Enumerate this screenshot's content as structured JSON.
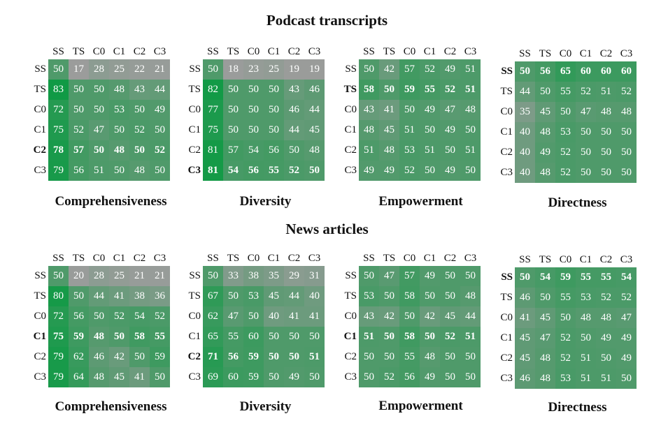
{
  "sections": [
    {
      "title": "Podcast transcripts"
    },
    {
      "title": "News articles"
    }
  ],
  "labels": [
    "SS",
    "TS",
    "C0",
    "C1",
    "C2",
    "C3"
  ],
  "colors": {
    "neutral": "#9c9c9c",
    "mid": "#4f9a6a",
    "high": "#0e9a44"
  },
  "chart_data": [
    {
      "type": "heatmap",
      "section": "Podcast transcripts",
      "title": "Comprehensiveness",
      "rows": [
        "SS",
        "TS",
        "C0",
        "C1",
        "C2",
        "C3"
      ],
      "cols": [
        "SS",
        "TS",
        "C0",
        "C1",
        "C2",
        "C3"
      ],
      "bold_rows": [
        "C2"
      ],
      "values": [
        [
          50,
          17,
          28,
          25,
          22,
          21
        ],
        [
          83,
          50,
          50,
          48,
          43,
          44
        ],
        [
          72,
          50,
          50,
          53,
          50,
          49
        ],
        [
          75,
          52,
          47,
          50,
          52,
          50
        ],
        [
          78,
          57,
          50,
          48,
          50,
          52
        ],
        [
          79,
          56,
          51,
          50,
          48,
          50
        ]
      ]
    },
    {
      "type": "heatmap",
      "section": "Podcast transcripts",
      "title": "Diversity",
      "rows": [
        "SS",
        "TS",
        "C0",
        "C1",
        "C2",
        "C3"
      ],
      "cols": [
        "SS",
        "TS",
        "C0",
        "C1",
        "C2",
        "C3"
      ],
      "bold_rows": [
        "C3"
      ],
      "values": [
        [
          50,
          18,
          23,
          25,
          19,
          19
        ],
        [
          82,
          50,
          50,
          50,
          43,
          46
        ],
        [
          77,
          50,
          50,
          50,
          46,
          44
        ],
        [
          75,
          50,
          50,
          50,
          44,
          45
        ],
        [
          81,
          57,
          54,
          56,
          50,
          48
        ],
        [
          81,
          54,
          56,
          55,
          52,
          50
        ]
      ]
    },
    {
      "type": "heatmap",
      "section": "Podcast transcripts",
      "title": "Empowerment",
      "rows": [
        "SS",
        "TS",
        "C0",
        "C1",
        "C2",
        "C3"
      ],
      "cols": [
        "SS",
        "TS",
        "C0",
        "C1",
        "C2",
        "C3"
      ],
      "bold_rows": [
        "TS"
      ],
      "values": [
        [
          50,
          42,
          57,
          52,
          49,
          51
        ],
        [
          58,
          50,
          59,
          55,
          52,
          51
        ],
        [
          43,
          41,
          50,
          49,
          47,
          48
        ],
        [
          48,
          45,
          51,
          50,
          49,
          50
        ],
        [
          51,
          48,
          53,
          51,
          50,
          51
        ],
        [
          49,
          49,
          52,
          50,
          49,
          50
        ]
      ]
    },
    {
      "type": "heatmap",
      "section": "Podcast transcripts",
      "title": "Directness",
      "rows": [
        "SS",
        "TS",
        "C0",
        "C1",
        "C2",
        "C3"
      ],
      "cols": [
        "SS",
        "TS",
        "C0",
        "C1",
        "C2",
        "C3"
      ],
      "bold_rows": [
        "SS"
      ],
      "values": [
        [
          50,
          56,
          65,
          60,
          60,
          60
        ],
        [
          44,
          50,
          55,
          52,
          51,
          52
        ],
        [
          35,
          45,
          50,
          47,
          48,
          48
        ],
        [
          40,
          48,
          53,
          50,
          50,
          50
        ],
        [
          40,
          49,
          52,
          50,
          50,
          50
        ],
        [
          40,
          48,
          52,
          50,
          50,
          50
        ]
      ]
    },
    {
      "type": "heatmap",
      "section": "News articles",
      "title": "Comprehensiveness",
      "rows": [
        "SS",
        "TS",
        "C0",
        "C1",
        "C2",
        "C3"
      ],
      "cols": [
        "SS",
        "TS",
        "C0",
        "C1",
        "C2",
        "C3"
      ],
      "bold_rows": [
        "C1"
      ],
      "values": [
        [
          50,
          20,
          28,
          25,
          21,
          21
        ],
        [
          80,
          50,
          44,
          41,
          38,
          36
        ],
        [
          72,
          56,
          50,
          52,
          54,
          52
        ],
        [
          75,
          59,
          48,
          50,
          58,
          55
        ],
        [
          79,
          62,
          46,
          42,
          50,
          59
        ],
        [
          79,
          64,
          48,
          45,
          41,
          50
        ]
      ]
    },
    {
      "type": "heatmap",
      "section": "News articles",
      "title": "Diversity",
      "rows": [
        "SS",
        "TS",
        "C0",
        "C1",
        "C2",
        "C3"
      ],
      "cols": [
        "SS",
        "TS",
        "C0",
        "C1",
        "C2",
        "C3"
      ],
      "bold_rows": [
        "C2"
      ],
      "values": [
        [
          50,
          33,
          38,
          35,
          29,
          31
        ],
        [
          67,
          50,
          53,
          45,
          44,
          40
        ],
        [
          62,
          47,
          50,
          40,
          41,
          41
        ],
        [
          65,
          55,
          60,
          50,
          50,
          50
        ],
        [
          71,
          56,
          59,
          50,
          50,
          51
        ],
        [
          69,
          60,
          59,
          50,
          49,
          50
        ]
      ]
    },
    {
      "type": "heatmap",
      "section": "News articles",
      "title": "Empowerment",
      "rows": [
        "SS",
        "TS",
        "C0",
        "C1",
        "C2",
        "C3"
      ],
      "cols": [
        "SS",
        "TS",
        "C0",
        "C1",
        "C2",
        "C3"
      ],
      "bold_rows": [
        "C1"
      ],
      "values": [
        [
          50,
          47,
          57,
          49,
          50,
          50
        ],
        [
          53,
          50,
          58,
          50,
          50,
          48
        ],
        [
          43,
          42,
          50,
          42,
          45,
          44
        ],
        [
          51,
          50,
          58,
          50,
          52,
          51
        ],
        [
          50,
          50,
          55,
          48,
          50,
          50
        ],
        [
          50,
          52,
          56,
          49,
          50,
          50
        ]
      ]
    },
    {
      "type": "heatmap",
      "section": "News articles",
      "title": "Directness",
      "rows": [
        "SS",
        "TS",
        "C0",
        "C1",
        "C2",
        "C3"
      ],
      "cols": [
        "SS",
        "TS",
        "C0",
        "C1",
        "C2",
        "C3"
      ],
      "bold_rows": [
        "SS"
      ],
      "values": [
        [
          50,
          54,
          59,
          55,
          55,
          54
        ],
        [
          46,
          50,
          55,
          53,
          52,
          52
        ],
        [
          41,
          45,
          50,
          48,
          48,
          47
        ],
        [
          45,
          47,
          52,
          50,
          49,
          49
        ],
        [
          45,
          48,
          52,
          51,
          50,
          49
        ],
        [
          46,
          48,
          53,
          51,
          51,
          50
        ]
      ]
    }
  ]
}
